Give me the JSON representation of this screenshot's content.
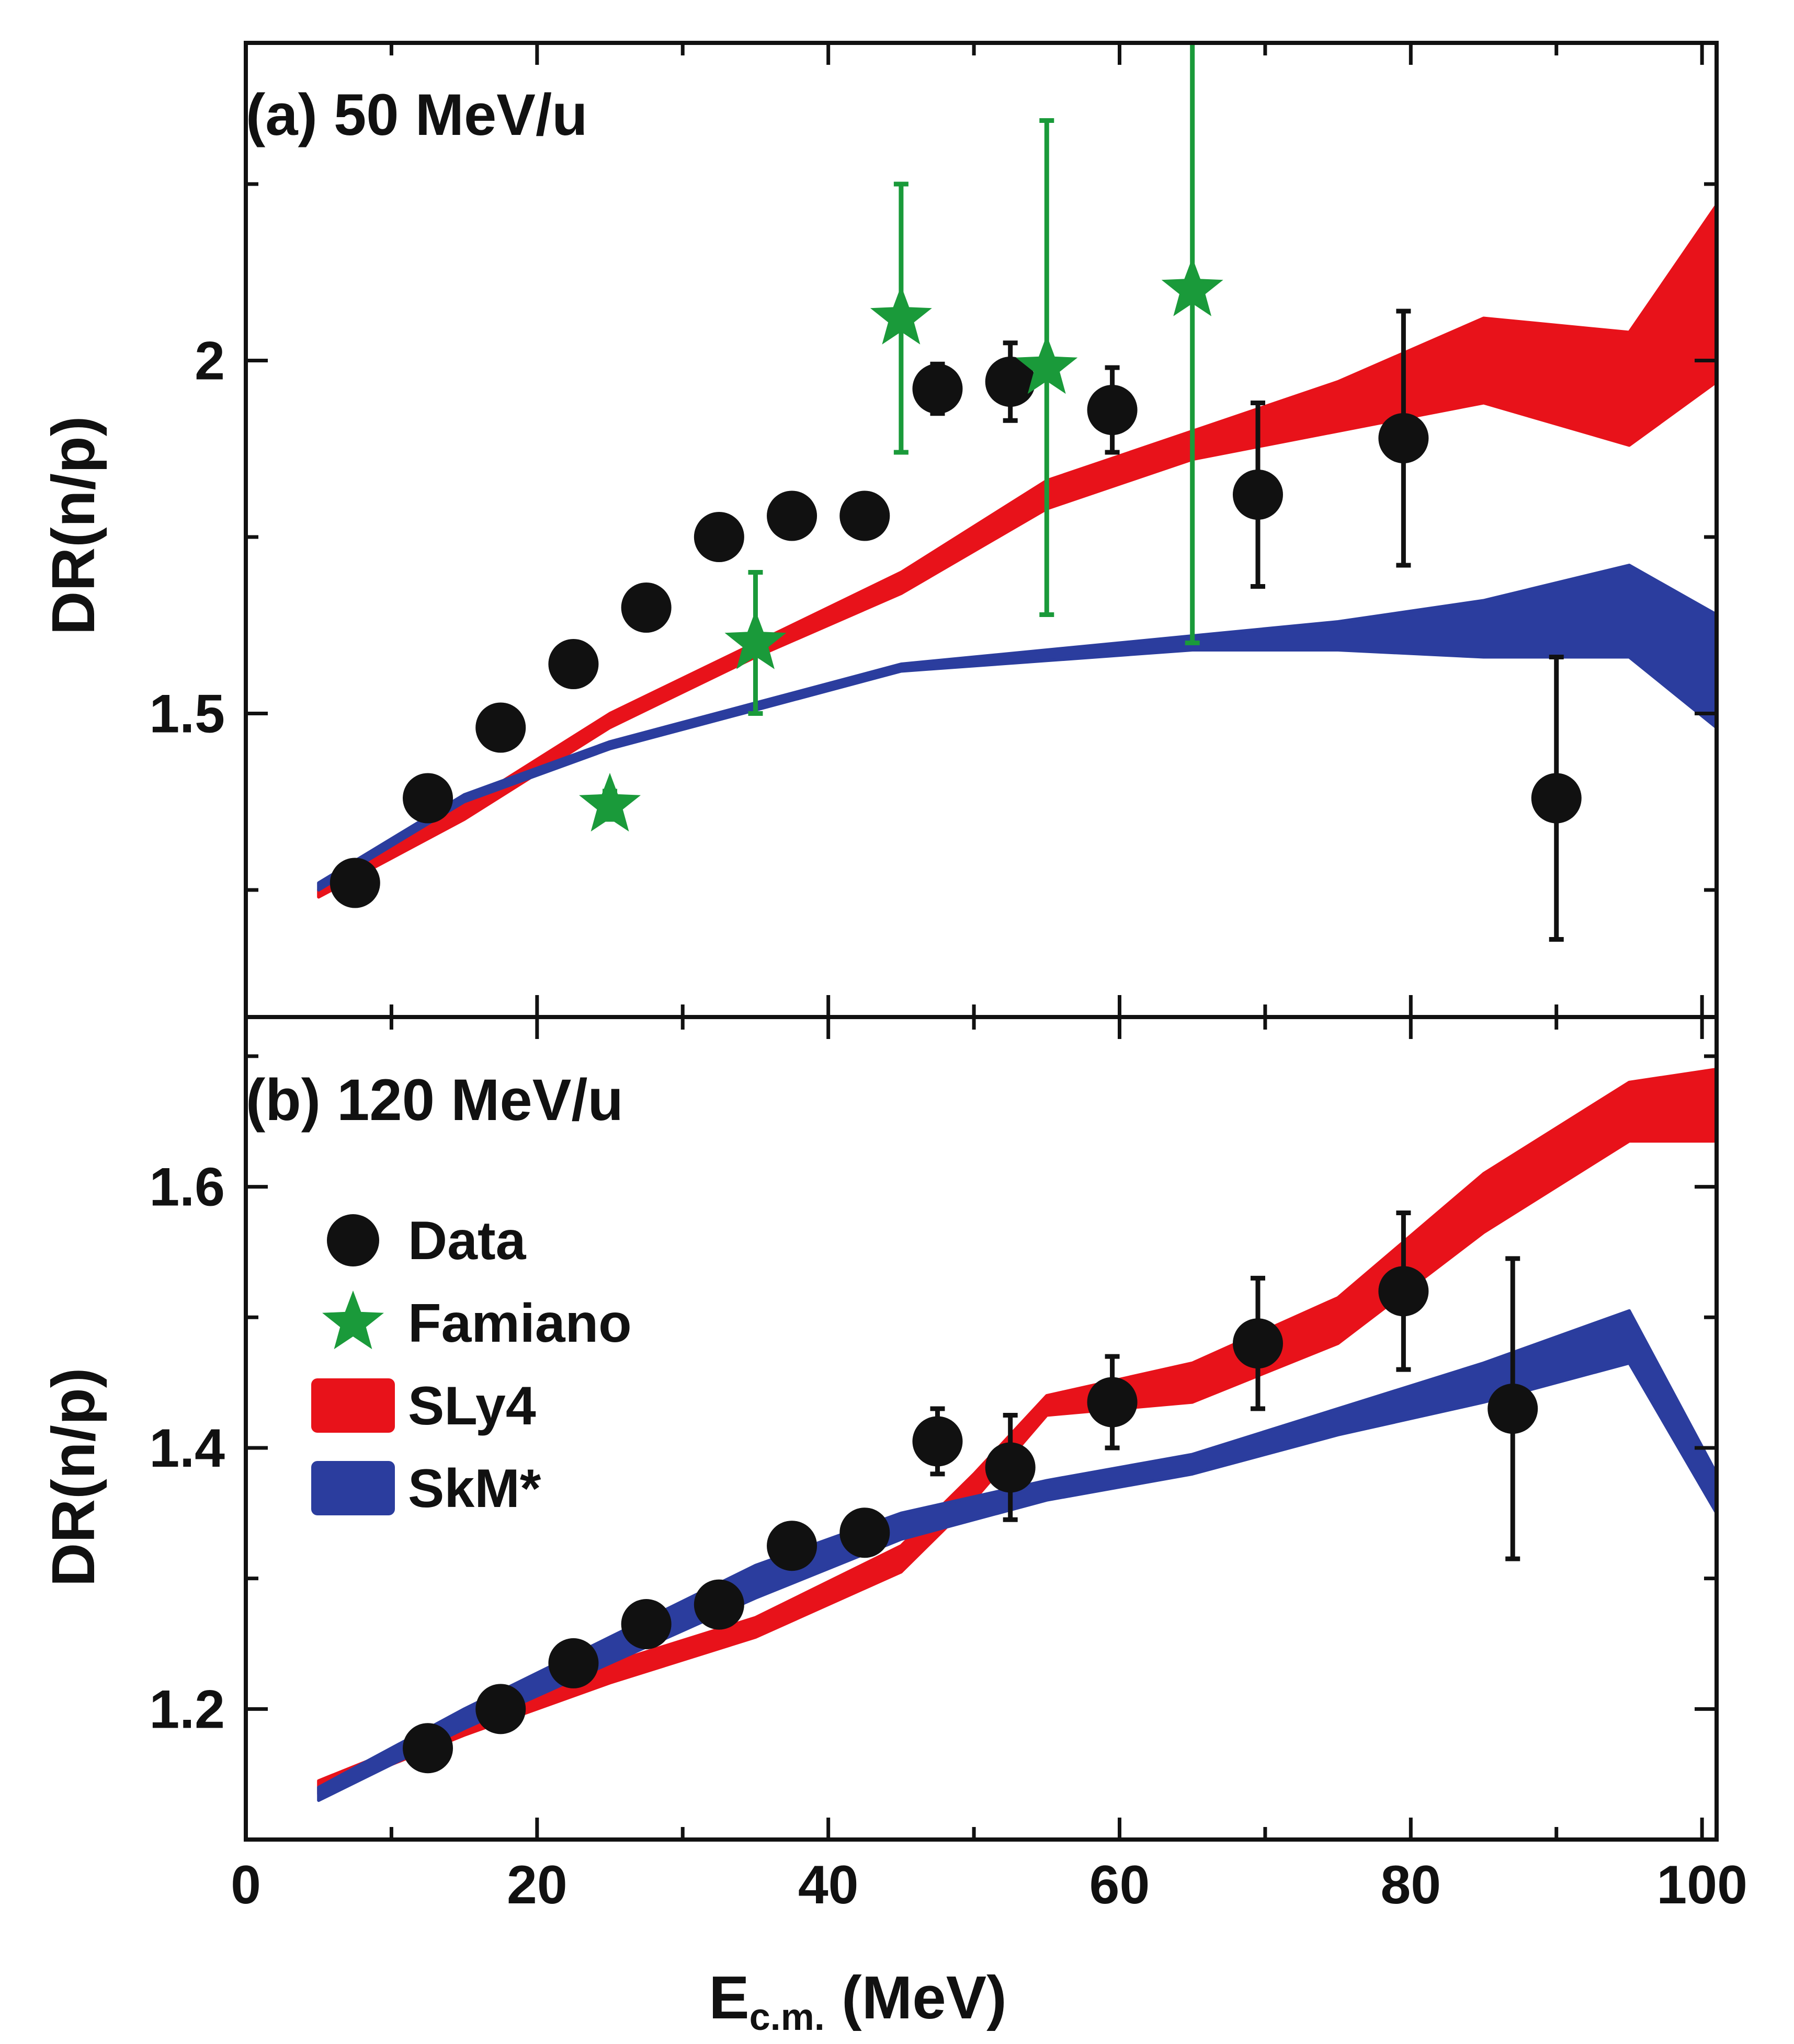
{
  "chart_data": [
    {
      "type": "scatter",
      "panel": "a",
      "title": "(a) 50 MeV/u",
      "xlabel": "E_c.m. (MeV)",
      "ylabel": "DR(n/p)",
      "xlim": [
        0,
        101
      ],
      "ylim": [
        1.07,
        2.45
      ],
      "yticks_major": [
        1.5,
        2.0
      ],
      "ytick_labels": [
        "1.5",
        "2"
      ],
      "yticks_minor_step": 0.25,
      "series": [
        {
          "name": "Data",
          "kind": "points",
          "marker": "circle",
          "color": "#111111",
          "x": [
            7.5,
            12.5,
            17.5,
            22.5,
            27.5,
            32.5,
            37.5,
            42.5,
            47.5,
            52.5,
            59.5,
            69.5,
            79.5,
            90
          ],
          "y": [
            1.26,
            1.38,
            1.48,
            1.57,
            1.65,
            1.75,
            1.78,
            1.78,
            1.96,
            1.97,
            1.93,
            1.81,
            1.89,
            1.38
          ],
          "err": [
            0,
            0,
            0,
            0,
            0,
            0,
            0.02,
            0.02,
            0.035,
            0.055,
            0.06,
            0.13,
            0.18,
            0.2
          ]
        },
        {
          "name": "Famiano",
          "kind": "points",
          "marker": "star",
          "color": "#1a9a3a",
          "x": [
            25,
            35,
            45,
            55,
            65
          ],
          "y": [
            1.37,
            1.6,
            2.06,
            1.99,
            2.1
          ],
          "err": [
            0.02,
            0.1,
            0.19,
            0.35,
            0.5
          ]
        },
        {
          "name": "SLy4",
          "kind": "band",
          "color": "#e8121a",
          "x": [
            5,
            15,
            25,
            35,
            45,
            55,
            65,
            75,
            85,
            95,
            101
          ],
          "lo": [
            1.24,
            1.35,
            1.48,
            1.58,
            1.67,
            1.79,
            1.86,
            1.9,
            1.94,
            1.88,
            1.97
          ],
          "hi": [
            1.25,
            1.37,
            1.5,
            1.6,
            1.7,
            1.83,
            1.9,
            1.97,
            2.06,
            2.04,
            2.22
          ]
        },
        {
          "name": "SkM*",
          "kind": "band",
          "color": "#2b3d9e",
          "x": [
            5,
            15,
            25,
            35,
            45,
            55,
            65,
            75,
            85,
            95,
            101
          ],
          "lo": [
            1.25,
            1.375,
            1.45,
            1.505,
            1.56,
            1.575,
            1.59,
            1.59,
            1.58,
            1.58,
            1.48
          ],
          "hi": [
            1.26,
            1.385,
            1.46,
            1.515,
            1.57,
            1.59,
            1.61,
            1.63,
            1.66,
            1.71,
            1.64
          ]
        }
      ]
    },
    {
      "type": "scatter",
      "panel": "b",
      "title": "(b) 120 MeV/u",
      "xlabel": "E_c.m. (MeV)",
      "ylabel": "DR(n/p)",
      "xlim": [
        0,
        101
      ],
      "ylim": [
        1.1,
        1.73
      ],
      "yticks_major": [
        1.2,
        1.4,
        1.6
      ],
      "ytick_labels": [
        "1.2",
        "1.4",
        "1.6"
      ],
      "yticks_minor_step": 0.1,
      "xticks": [
        0,
        20,
        40,
        60,
        80,
        100
      ],
      "xtick_labels": [
        "0",
        "20",
        "40",
        "60",
        "80",
        "100"
      ],
      "series": [
        {
          "name": "Data",
          "kind": "points",
          "marker": "circle",
          "color": "#111111",
          "x": [
            12.5,
            17.5,
            22.5,
            27.5,
            32.5,
            37.5,
            42.5,
            47.5,
            52.5,
            59.5,
            69.5,
            79.5,
            87
          ],
          "y": [
            1.17,
            1.2,
            1.235,
            1.265,
            1.28,
            1.325,
            1.335,
            1.405,
            1.385,
            1.435,
            1.48,
            1.52,
            1.43
          ],
          "err": [
            0,
            0,
            0,
            0,
            0,
            0,
            0,
            0.025,
            0.04,
            0.035,
            0.05,
            0.06,
            0.115
          ]
        },
        {
          "name": "SLy4",
          "kind": "band",
          "color": "#e8121a",
          "x": [
            5,
            15,
            25,
            35,
            45,
            50,
            55,
            65,
            75,
            85,
            95,
            101
          ],
          "lo": [
            1.135,
            1.18,
            1.22,
            1.255,
            1.305,
            1.36,
            1.425,
            1.435,
            1.48,
            1.565,
            1.635,
            1.635
          ],
          "hi": [
            1.145,
            1.19,
            1.235,
            1.27,
            1.325,
            1.38,
            1.44,
            1.465,
            1.515,
            1.61,
            1.68,
            1.69
          ]
        },
        {
          "name": "SkM*",
          "kind": "band",
          "color": "#2b3d9e",
          "x": [
            5,
            15,
            25,
            35,
            45,
            55,
            65,
            75,
            85,
            95,
            101
          ],
          "lo": [
            1.13,
            1.185,
            1.235,
            1.285,
            1.33,
            1.36,
            1.38,
            1.41,
            1.435,
            1.465,
            1.35
          ],
          "hi": [
            1.14,
            1.2,
            1.255,
            1.31,
            1.35,
            1.375,
            1.395,
            1.43,
            1.465,
            1.505,
            1.38
          ]
        }
      ]
    }
  ],
  "legend": {
    "placement": "panel-b-left",
    "entries": [
      {
        "label": "Data",
        "symbol": "circle",
        "color": "#111111"
      },
      {
        "label": "Famiano",
        "symbol": "star",
        "color": "#1a9a3a"
      },
      {
        "label": "SLy4",
        "symbol": "box",
        "color": "#e8121a"
      },
      {
        "label": "SkM*",
        "symbol": "box",
        "color": "#2b3d9e"
      }
    ]
  }
}
